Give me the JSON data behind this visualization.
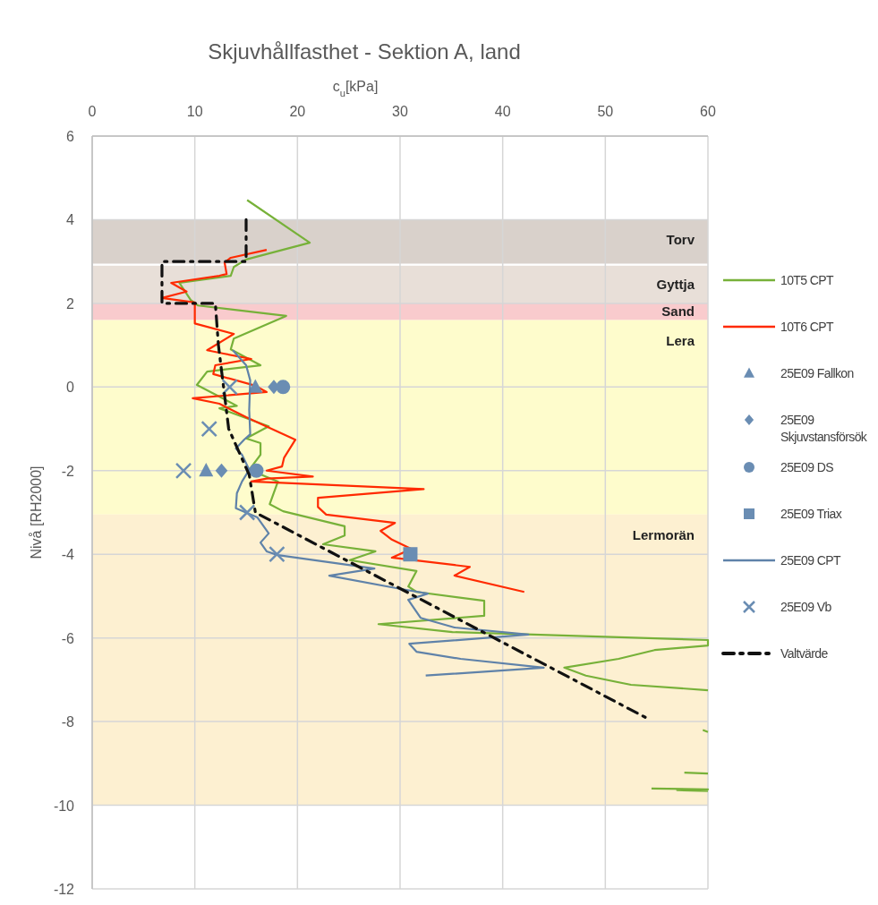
{
  "chart_data": {
    "type": "line",
    "title": "Skjuvhållfasthet - Sektion A, land",
    "xlabel": "c$_{u}$[kPa]",
    "ylabel": "Nivå [RH2000]",
    "xlim": [
      0,
      60
    ],
    "xticks": [
      0,
      10,
      20,
      30,
      40,
      50,
      60
    ],
    "ylim": [
      -12,
      6
    ],
    "yticks": [
      -12,
      -10,
      -8,
      -6,
      -4,
      -2,
      0,
      2,
      4,
      6
    ],
    "grid": true,
    "legend": "right",
    "bands": [
      {
        "axis": "y",
        "from": 2.95,
        "to": 4.0,
        "label": "Torv",
        "color": "#d9d1cb"
      },
      {
        "axis": "y",
        "from": 2.0,
        "to": 2.9,
        "label": "Gyttja",
        "color": "#e8dfd8"
      },
      {
        "axis": "y",
        "from": 1.6,
        "to": 2.0,
        "label": "Sand",
        "color": "#f9cbcd"
      },
      {
        "axis": "y",
        "from": -3.05,
        "to": 1.6,
        "label": "Lera",
        "color": "#fefccc"
      },
      {
        "axis": "y",
        "from": -10,
        "to": -3.05,
        "label": "Lermorän",
        "color": "#fdf0d1"
      }
    ],
    "series": [
      {
        "name": "10T5 CPT",
        "color": "#77b139",
        "marker": "none",
        "line_style": "solid",
        "x": [
          15.1,
          21.2,
          15.0,
          13.8,
          13.5,
          8.5,
          9.6,
          10.3,
          18.9,
          13.8,
          13.5,
          16.4,
          11.2,
          10.2,
          14.1,
          12.4,
          17.2,
          15.0,
          16.4,
          16.4,
          15.3,
          18.1,
          17.3,
          18.6,
          24.6,
          24.6,
          22.5,
          27.6,
          25.1,
          31.6,
          30.8,
          31.6,
          38.2,
          38.2,
          27.9,
          35.1,
          60,
          60,
          54.8,
          51.3,
          46.0,
          48.1,
          52.5,
          60,
          null,
          59.5,
          60,
          null,
          57.7,
          60,
          null,
          54.5,
          60,
          57.0,
          60
        ],
        "values": [
          4.47,
          3.45,
          3.05,
          2.87,
          2.66,
          2.49,
          2.08,
          1.95,
          1.7,
          1.16,
          0.9,
          0.52,
          0.37,
          0.05,
          -0.45,
          -0.51,
          -0.94,
          -1.23,
          -1.34,
          -1.62,
          -1.98,
          -2.26,
          -2.8,
          -2.97,
          -3.33,
          -3.55,
          -3.76,
          -3.93,
          -4.14,
          -4.4,
          -4.77,
          -4.9,
          -5.11,
          -5.47,
          -5.67,
          -5.86,
          -6.05,
          -6.18,
          -6.29,
          -6.5,
          -6.71,
          -6.9,
          -7.12,
          -7.25,
          null,
          -8.2,
          -8.25,
          null,
          -9.22,
          -9.24,
          null,
          -9.6,
          -9.62,
          -9.64,
          -9.66
        ]
      },
      {
        "name": "10T6 CPT",
        "color": "#ff2a00",
        "marker": "none",
        "line_style": "solid",
        "x": [
          17.0,
          13.5,
          12.9,
          13.1,
          12.4,
          7.7,
          9.2,
          6.8,
          10.0,
          10.0,
          10.0,
          13.8,
          11.2,
          12.8,
          15.5,
          12.0,
          11.8,
          15.9,
          17.0,
          9.8,
          12.4,
          15.0,
          19.8,
          18.7,
          18.5,
          17.0,
          21.5,
          17.0,
          15.5,
          32.3,
          22.0,
          22.0,
          22.8,
          29.5,
          28.1,
          29.2,
          31.1,
          29.2,
          36.8,
          35.3,
          42.1
        ],
        "values": [
          3.28,
          3.09,
          2.98,
          2.7,
          2.66,
          2.49,
          2.28,
          2.13,
          2.02,
          1.76,
          1.52,
          1.27,
          0.88,
          0.8,
          0.67,
          0.52,
          0.31,
          0.03,
          -0.12,
          -0.27,
          -0.4,
          -0.72,
          -1.26,
          -1.69,
          -1.9,
          -2.0,
          -2.14,
          -2.19,
          -2.26,
          -2.44,
          -2.65,
          -2.87,
          -3.05,
          -3.25,
          -3.44,
          -3.65,
          -3.87,
          -4.08,
          -4.3,
          -4.51,
          -4.9
        ]
      },
      {
        "name": "25E09 Fallkon",
        "type": "scatter",
        "color": "#6a8db3",
        "marker": "triangle",
        "x": [
          15.9,
          11.1
        ],
        "values": [
          0,
          -2
        ]
      },
      {
        "name": "25E09 Skjuvstansförsök",
        "type": "scatter",
        "color": "#6a8db3",
        "marker": "diamond",
        "x": [
          17.7,
          12.6
        ],
        "values": [
          0,
          -2
        ]
      },
      {
        "name": "25E09 DS",
        "type": "scatter",
        "color": "#6a8db3",
        "marker": "circle",
        "x": [
          18.6,
          16.0
        ],
        "values": [
          0,
          -2
        ]
      },
      {
        "name": "25E09 Triax",
        "type": "scatter",
        "color": "#6a8db3",
        "marker": "square",
        "x": [
          31.0
        ],
        "values": [
          -4
        ]
      },
      {
        "name": "25E09 CPT",
        "color": "#5f82a9",
        "marker": "none",
        "line_style": "solid",
        "x": [
          13.7,
          15.0,
          15.4,
          15.3,
          15.4,
          14.8,
          14.0,
          14.6,
          15.3,
          14.6,
          14.1,
          14.0,
          16.1,
          17.2,
          16.4,
          17.0,
          18.1,
          27.5,
          23.1,
          30.1,
          32.7,
          30.8,
          32.0,
          35.3,
          42.5,
          30.9,
          31.6,
          35.9,
          44.0,
          32.5
        ],
        "values": [
          0.88,
          0.52,
          0.16,
          -0.55,
          -1.13,
          -1.26,
          -1.47,
          -1.62,
          -1.98,
          -2.26,
          -2.54,
          -2.9,
          -3.12,
          -3.5,
          -3.72,
          -3.93,
          -4.02,
          -4.34,
          -4.51,
          -4.83,
          -4.94,
          -5.09,
          -5.52,
          -5.75,
          -5.92,
          -6.14,
          -6.33,
          -6.5,
          -6.71,
          -6.9
        ]
      },
      {
        "name": "25E09 Vb",
        "type": "scatter",
        "color": "#6a8db3",
        "marker": "cross",
        "x": [
          13.4,
          11.4,
          8.9,
          15.1,
          18.0
        ],
        "values": [
          0,
          -1,
          -2,
          -3,
          -4
        ]
      },
      {
        "name": "Valtvärde",
        "color": "#111111",
        "marker": "none",
        "line_style": "dashdot",
        "x": [
          15.0,
          15.0,
          6.8,
          6.8,
          12.0,
          12.3,
          13.3,
          15.3,
          15.9,
          54.3
        ],
        "values": [
          4.0,
          3.0,
          3.0,
          2.0,
          2.0,
          1.0,
          -1.0,
          -2.1,
          -3.0,
          -7.95
        ]
      }
    ]
  }
}
